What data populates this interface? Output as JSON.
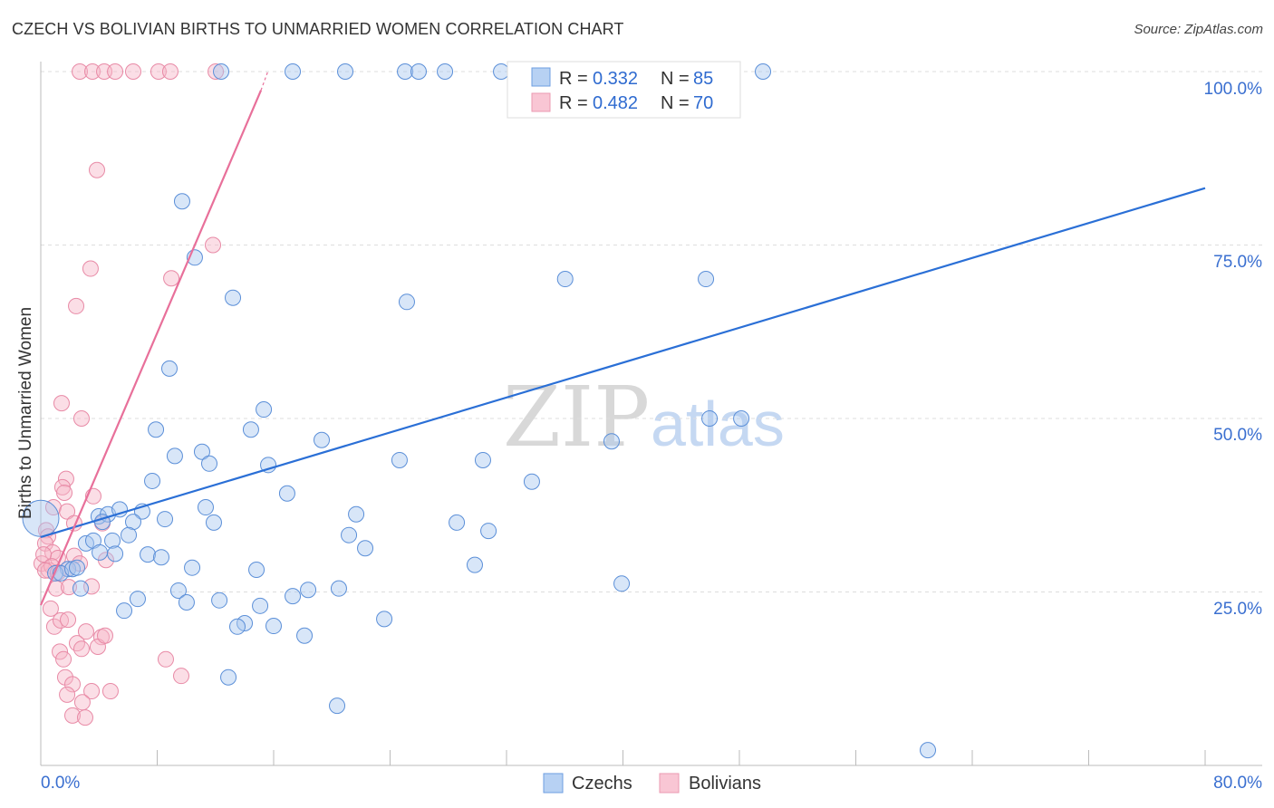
{
  "header": {
    "title": "CZECH VS BOLIVIAN BIRTHS TO UNMARRIED WOMEN CORRELATION CHART",
    "source": "Source: ZipAtlas.com"
  },
  "watermark": {
    "part1": "ZIP",
    "part2": "atlas"
  },
  "chart_data": {
    "type": "scatter",
    "title": "CZECH VS BOLIVIAN BIRTHS TO UNMARRIED WOMEN CORRELATION CHART",
    "xlabel": "",
    "ylabel": "Births to Unmarried Women",
    "xlim": [
      0,
      80
    ],
    "ylim": [
      0,
      100
    ],
    "x_tick_labels": [
      "0.0%",
      "80.0%"
    ],
    "y_tick_labels": [
      "100.0%",
      "75.0%",
      "50.0%",
      "25.0%"
    ],
    "y_ticks": [
      100,
      75,
      50,
      25
    ],
    "grid": true,
    "legend_position": "top-center",
    "colors": {
      "Czechs": "#5b8fd8",
      "Bolivians": "#e88aa6",
      "Czechs_line": "#2a6fd6",
      "Bolivians_line": "#e8709a"
    },
    "stats": [
      {
        "series": "Czechs",
        "r_label": "R = ",
        "r": "0.332",
        "n_label": "N = ",
        "n": "85"
      },
      {
        "series": "Bolivians",
        "r_label": "R = ",
        "r": "0.482",
        "n_label": "N = ",
        "n": "70"
      }
    ],
    "series": [
      {
        "name": "Czechs",
        "trend": [
          [
            0,
            32.9
          ],
          [
            80,
            83.2
          ]
        ],
        "points": [
          [
            12.39,
            100
          ],
          [
            17.31,
            100
          ],
          [
            20.92,
            100
          ],
          [
            25.03,
            100
          ],
          [
            25.96,
            100
          ],
          [
            27.77,
            100
          ],
          [
            31.63,
            100
          ],
          [
            33.25,
            100
          ],
          [
            49.62,
            100
          ],
          [
            9.71,
            81.3
          ],
          [
            10.58,
            73.2
          ],
          [
            13.2,
            67.4
          ],
          [
            25.15,
            66.8
          ],
          [
            36.03,
            70.1
          ],
          [
            45.7,
            70.1
          ],
          [
            8.84,
            57.2
          ],
          [
            15.32,
            51.3
          ],
          [
            7.91,
            48.4
          ],
          [
            14.44,
            48.4
          ],
          [
            45.95,
            50.0
          ],
          [
            48.13,
            50.0
          ],
          [
            19.3,
            46.9
          ],
          [
            39.22,
            46.7
          ],
          [
            9.21,
            44.6
          ],
          [
            11.08,
            45.2
          ],
          [
            11.58,
            43.5
          ],
          [
            15.63,
            43.3
          ],
          [
            24.65,
            44.0
          ],
          [
            30.38,
            44.0
          ],
          [
            7.66,
            41.0
          ],
          [
            33.74,
            40.9
          ],
          [
            16.93,
            39.2
          ],
          [
            11.33,
            37.2
          ],
          [
            3.98,
            35.9
          ],
          [
            4.61,
            36.2
          ],
          [
            5.42,
            36.9
          ],
          [
            6.97,
            36.6
          ],
          [
            6.35,
            35.1
          ],
          [
            8.53,
            35.5
          ],
          [
            11.89,
            35.0
          ],
          [
            21.67,
            36.2
          ],
          [
            4.23,
            35.1
          ],
          [
            28.58,
            35.0
          ],
          [
            30.76,
            33.8
          ],
          [
            21.17,
            33.2
          ],
          [
            6.04,
            33.2
          ],
          [
            3.11,
            32.0
          ],
          [
            3.61,
            32.4
          ],
          [
            4.92,
            32.4
          ],
          [
            22.29,
            31.3
          ],
          [
            5.11,
            30.5
          ],
          [
            7.35,
            30.4
          ],
          [
            8.28,
            30.0
          ],
          [
            1.87,
            28.3
          ],
          [
            1.0,
            27.7
          ],
          [
            2.74,
            25.5
          ],
          [
            10.4,
            28.5
          ],
          [
            14.82,
            28.2
          ],
          [
            39.91,
            26.2
          ],
          [
            29.82,
            28.9
          ],
          [
            9.46,
            25.2
          ],
          [
            18.37,
            25.3
          ],
          [
            20.48,
            25.5
          ],
          [
            17.31,
            24.4
          ],
          [
            10.02,
            23.5
          ],
          [
            12.27,
            23.8
          ],
          [
            6.66,
            24.0
          ],
          [
            15.07,
            23.0
          ],
          [
            5.73,
            22.3
          ],
          [
            14.01,
            20.5
          ],
          [
            13.51,
            20.0
          ],
          [
            16.0,
            20.1
          ],
          [
            18.12,
            18.7
          ],
          [
            23.6,
            21.1
          ],
          [
            12.89,
            12.7
          ],
          [
            20.36,
            8.6
          ],
          [
            60.95,
            2.2
          ],
          [
            1.37,
            27.7
          ],
          [
            2.18,
            28.3
          ],
          [
            4.05,
            30.7
          ],
          [
            2.49,
            28.5
          ]
        ],
        "large_points": [
          [
            0,
            35.6
          ]
        ]
      },
      {
        "name": "Bolivians",
        "trend": [
          [
            0,
            23.1
          ],
          [
            15.13,
            97.3
          ]
        ],
        "trend_dashed_to": [
          15.6,
          100
        ],
        "points": [
          [
            2.68,
            100
          ],
          [
            3.55,
            100
          ],
          [
            4.36,
            100
          ],
          [
            5.11,
            100
          ],
          [
            6.35,
            100
          ],
          [
            8.09,
            100
          ],
          [
            8.9,
            100
          ],
          [
            12.02,
            100
          ],
          [
            3.86,
            85.8
          ],
          [
            11.83,
            75.0
          ],
          [
            3.42,
            71.6
          ],
          [
            8.97,
            70.2
          ],
          [
            2.43,
            66.2
          ],
          [
            1.43,
            52.2
          ],
          [
            2.8,
            50.0
          ],
          [
            1.74,
            41.3
          ],
          [
            1.49,
            40.1
          ],
          [
            1.62,
            39.3
          ],
          [
            3.61,
            38.8
          ],
          [
            0.87,
            37.2
          ],
          [
            1.81,
            36.6
          ],
          [
            2.3,
            34.9
          ],
          [
            4.23,
            34.9
          ],
          [
            0.37,
            33.9
          ],
          [
            0.5,
            33.0
          ],
          [
            0.31,
            32.0
          ],
          [
            0.81,
            30.7
          ],
          [
            2.3,
            30.2
          ],
          [
            4.48,
            29.6
          ],
          [
            0.06,
            29.1
          ],
          [
            1.18,
            29.9
          ],
          [
            0.56,
            28.1
          ],
          [
            1.87,
            28.3
          ],
          [
            2.68,
            29.1
          ],
          [
            3.49,
            25.8
          ],
          [
            1.06,
            25.5
          ],
          [
            1.93,
            25.7
          ],
          [
            0.68,
            22.6
          ],
          [
            0.93,
            20.0
          ],
          [
            1.37,
            20.9
          ],
          [
            1.87,
            21.0
          ],
          [
            3.11,
            19.3
          ],
          [
            4.17,
            18.5
          ],
          [
            2.49,
            17.6
          ],
          [
            2.8,
            16.8
          ],
          [
            3.92,
            17.1
          ],
          [
            4.42,
            18.7
          ],
          [
            1.31,
            16.4
          ],
          [
            1.56,
            15.3
          ],
          [
            1.68,
            12.7
          ],
          [
            2.18,
            11.7
          ],
          [
            1.81,
            10.2
          ],
          [
            3.49,
            10.7
          ],
          [
            4.79,
            10.7
          ],
          [
            2.86,
            9.1
          ],
          [
            2.18,
            7.2
          ],
          [
            3.05,
            6.9
          ],
          [
            8.59,
            15.3
          ],
          [
            9.65,
            12.9
          ],
          [
            0.19,
            30.4
          ],
          [
            0.75,
            28.7
          ],
          [
            0.31,
            28.1
          ],
          [
            1.18,
            27.8
          ]
        ]
      }
    ]
  },
  "legend": {
    "items": [
      "Czechs",
      "Bolivians"
    ]
  }
}
